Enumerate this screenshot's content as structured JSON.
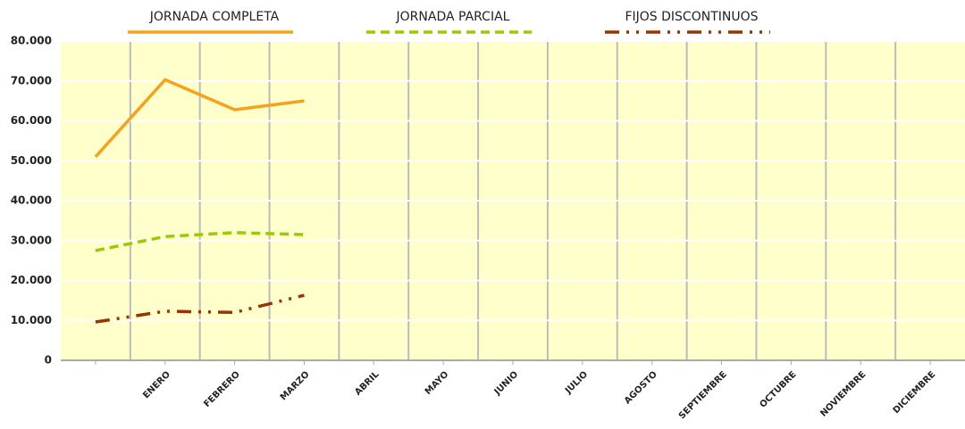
{
  "chart_data": {
    "type": "line",
    "categories": [
      null,
      "ENERO",
      "FEBRERO",
      "MARZO",
      "ABRIL",
      "MAYO",
      "JUNIO",
      "JULIO",
      "AGOSTO",
      "SEPTIEMBRE",
      "OCTUBRE",
      "NOVIEMBRE",
      "DICIEMBRE"
    ],
    "series": [
      {
        "name": "JORNADA COMPLETA",
        "color": "#f7a21b",
        "dash": "solid",
        "values": [
          51000,
          70300,
          62800,
          65000,
          null,
          null,
          null,
          null,
          null,
          null,
          null,
          null,
          null
        ]
      },
      {
        "name": "JORNADA PARCIAL",
        "color": "#99cc00",
        "dash": "dashed",
        "values": [
          27500,
          31000,
          32000,
          31500,
          null,
          null,
          null,
          null,
          null,
          null,
          null,
          null,
          null
        ]
      },
      {
        "name": "FIJOS DISCONTINUOS",
        "color": "#993300",
        "dash": "dashdotdot",
        "values": [
          9600,
          12300,
          12000,
          16300,
          null,
          null,
          null,
          null,
          null,
          null,
          null,
          null,
          null
        ]
      }
    ],
    "ylim": [
      0,
      80000
    ],
    "yticks": [
      0,
      {
        "value": 10000,
        "label": "10.000"
      },
      {
        "value": 20000,
        "label": "20.000"
      },
      {
        "value": 30000,
        "label": "30.000"
      },
      {
        "value": 40000,
        "label": "40.000"
      },
      {
        "value": 50000,
        "label": "50.000"
      },
      {
        "value": 60000,
        "label": "60.000"
      },
      {
        "value": 70000,
        "label": "70.000"
      },
      {
        "value": 80000,
        "label": "80.000"
      }
    ],
    "grid": true,
    "legend": "top"
  }
}
